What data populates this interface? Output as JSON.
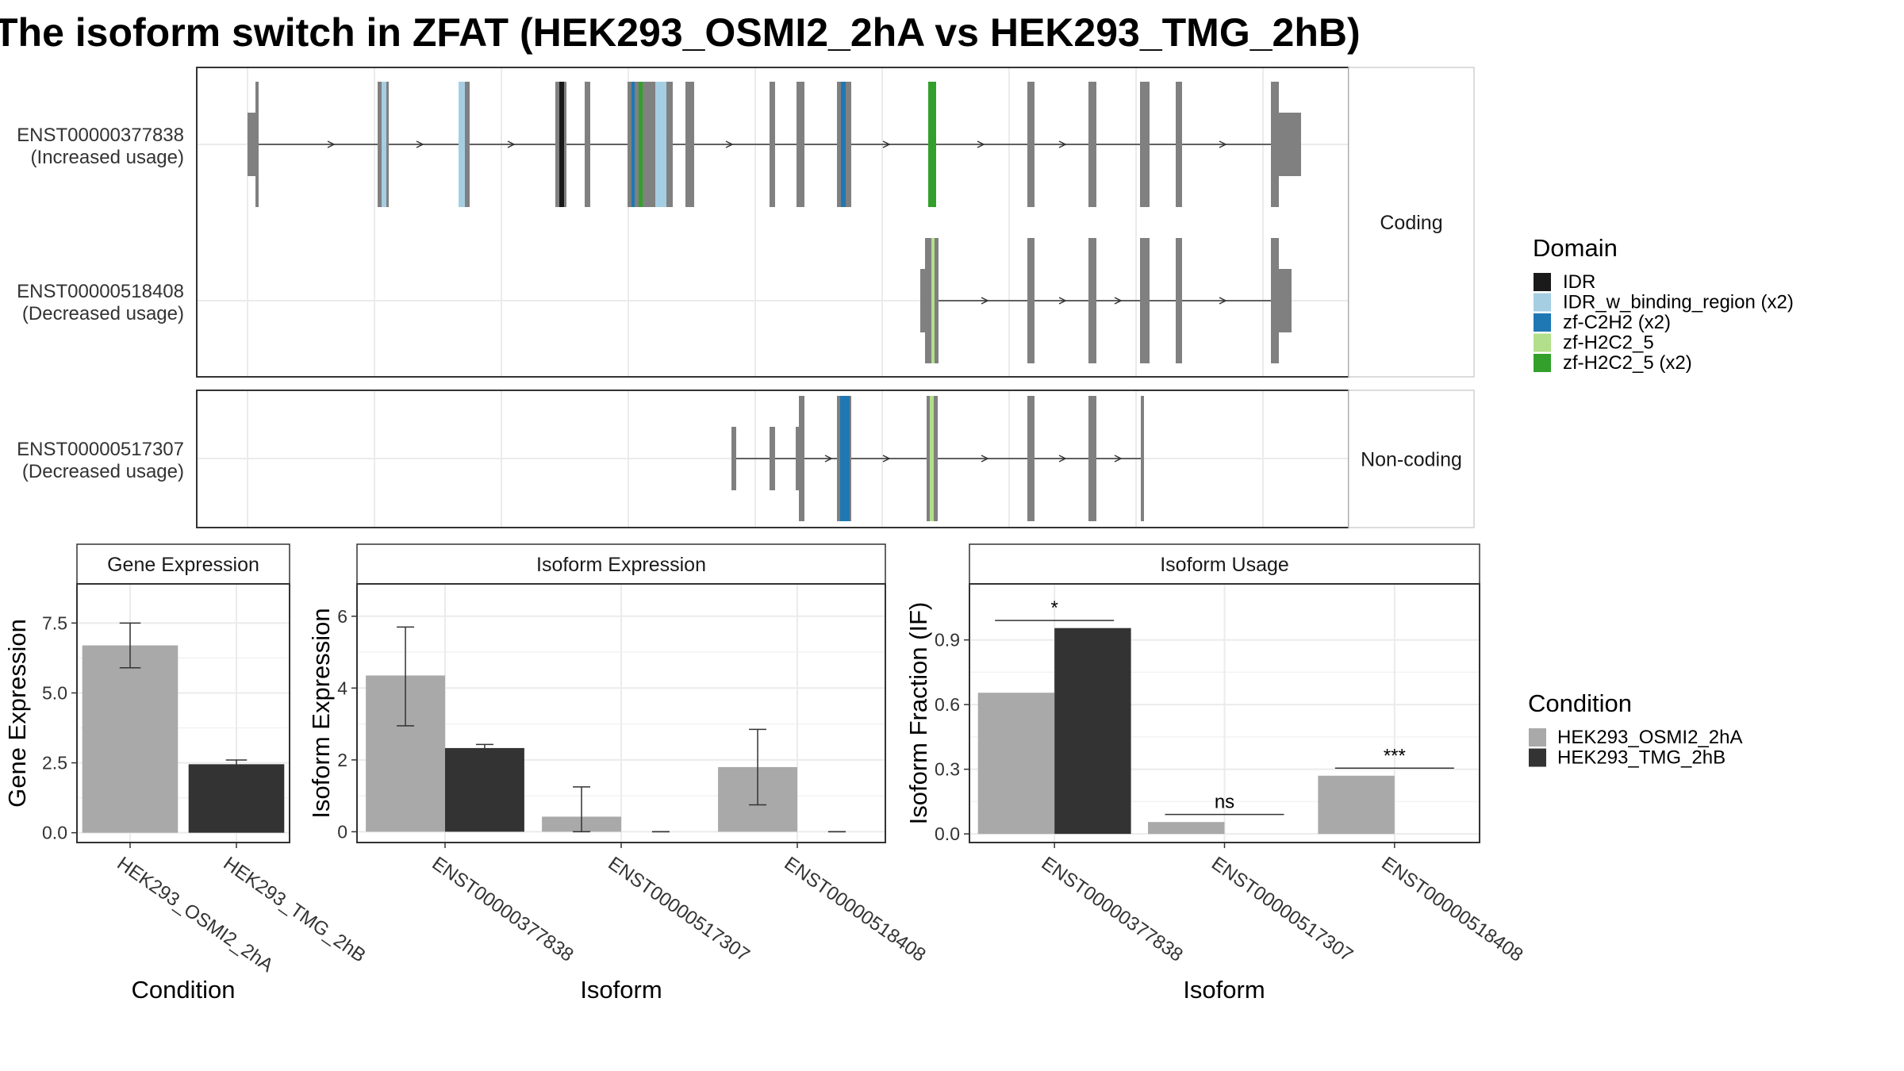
{
  "title": "The isoform switch in ZFAT (HEK293_OSMI2_2hA vs HEK293_TMG_2hB)",
  "colors": {
    "exon": "#808080",
    "IDR": "#1a1a1a",
    "IDR_w_binding_region": "#a6cee3",
    "zf-C2H2": "#1f78b4",
    "zf-H2C2_5_light": "#b2df8a",
    "zf-H2C2_5": "#33a02c",
    "cond_a": "#a9a9a9",
    "cond_b": "#333333",
    "grid": "#ebebeb",
    "panel_border": "#333333"
  },
  "structure": {
    "groups": [
      {
        "label": "Coding",
        "transcripts": [
          {
            "id": "ENST00000377838",
            "usage": "(Increased usage)"
          },
          {
            "id": "ENST00000518408",
            "usage": "(Decreased usage)"
          }
        ]
      },
      {
        "label": "Non-coding",
        "transcripts": [
          {
            "id": "ENST00000517307",
            "usage": "(Decreased usage)"
          }
        ]
      }
    ]
  },
  "domain_legend": {
    "title": "Domain",
    "items": [
      {
        "label": "IDR",
        "color": "#1a1a1a"
      },
      {
        "label": "IDR_w_binding_region (x2)",
        "color": "#a6cee3"
      },
      {
        "label": "zf-C2H2 (x2)",
        "color": "#1f78b4"
      },
      {
        "label": "zf-H2C2_5",
        "color": "#b2df8a"
      },
      {
        "label": "zf-H2C2_5 (x2)",
        "color": "#33a02c"
      }
    ]
  },
  "condition_legend": {
    "title": "Condition",
    "items": [
      {
        "label": "HEK293_OSMI2_2hA",
        "color": "#a9a9a9"
      },
      {
        "label": "HEK293_TMG_2hB",
        "color": "#333333"
      }
    ]
  },
  "chart_data": [
    {
      "type": "bar",
      "strip": "Gene Expression",
      "xlabel": "Condition",
      "ylabel": "Gene Expression",
      "categories": [
        "HEK293_OSMI2_2hA",
        "HEK293_TMG_2hB"
      ],
      "values": [
        6.7,
        2.45
      ],
      "errors": [
        [
          5.9,
          7.5
        ],
        [
          2.3,
          2.6
        ]
      ],
      "ylim": [
        -0.35,
        8.9
      ],
      "yticks": [
        0,
        2.5,
        5,
        7.5
      ],
      "ytick_labels": [
        "0.0",
        "2.5",
        "5.0",
        "7.5"
      ]
    },
    {
      "type": "bar",
      "strip": "Isoform Expression",
      "xlabel": "Isoform",
      "ylabel": "Isoform Expression",
      "categories": [
        "ENST00000377838",
        "ENST00000517307",
        "ENST00000518408"
      ],
      "series": [
        {
          "name": "HEK293_OSMI2_2hA",
          "values": [
            4.35,
            0.42,
            1.8
          ],
          "errors": [
            [
              2.95,
              5.7
            ],
            [
              0.0,
              1.25
            ],
            [
              0.75,
              2.85
            ]
          ]
        },
        {
          "name": "HEK293_TMG_2hB",
          "values": [
            2.33,
            0.0,
            0.0
          ],
          "errors": [
            [
              2.2,
              2.43
            ],
            [
              0.0,
              0.0
            ],
            [
              0.0,
              0.0
            ]
          ]
        }
      ],
      "ylim": [
        -0.3,
        6.9
      ],
      "yticks": [
        0,
        2,
        4,
        6
      ],
      "ytick_labels": [
        "0",
        "2",
        "4",
        "6"
      ]
    },
    {
      "type": "bar",
      "strip": "Isoform Usage",
      "xlabel": "Isoform",
      "ylabel": "Isoform Fraction (IF)",
      "categories": [
        "ENST00000377838",
        "ENST00000517307",
        "ENST00000518408"
      ],
      "series": [
        {
          "name": "HEK293_OSMI2_2hA",
          "values": [
            0.655,
            0.055,
            0.27
          ]
        },
        {
          "name": "HEK293_TMG_2hB",
          "values": [
            0.955,
            0.0,
            0.0
          ]
        }
      ],
      "significance": [
        "*",
        "ns",
        "***"
      ],
      "ylim": [
        -0.04,
        1.16
      ],
      "yticks": [
        0,
        0.3,
        0.6,
        0.9
      ],
      "ytick_labels": [
        "0.0",
        "0.3",
        "0.6",
        "0.9"
      ]
    }
  ]
}
